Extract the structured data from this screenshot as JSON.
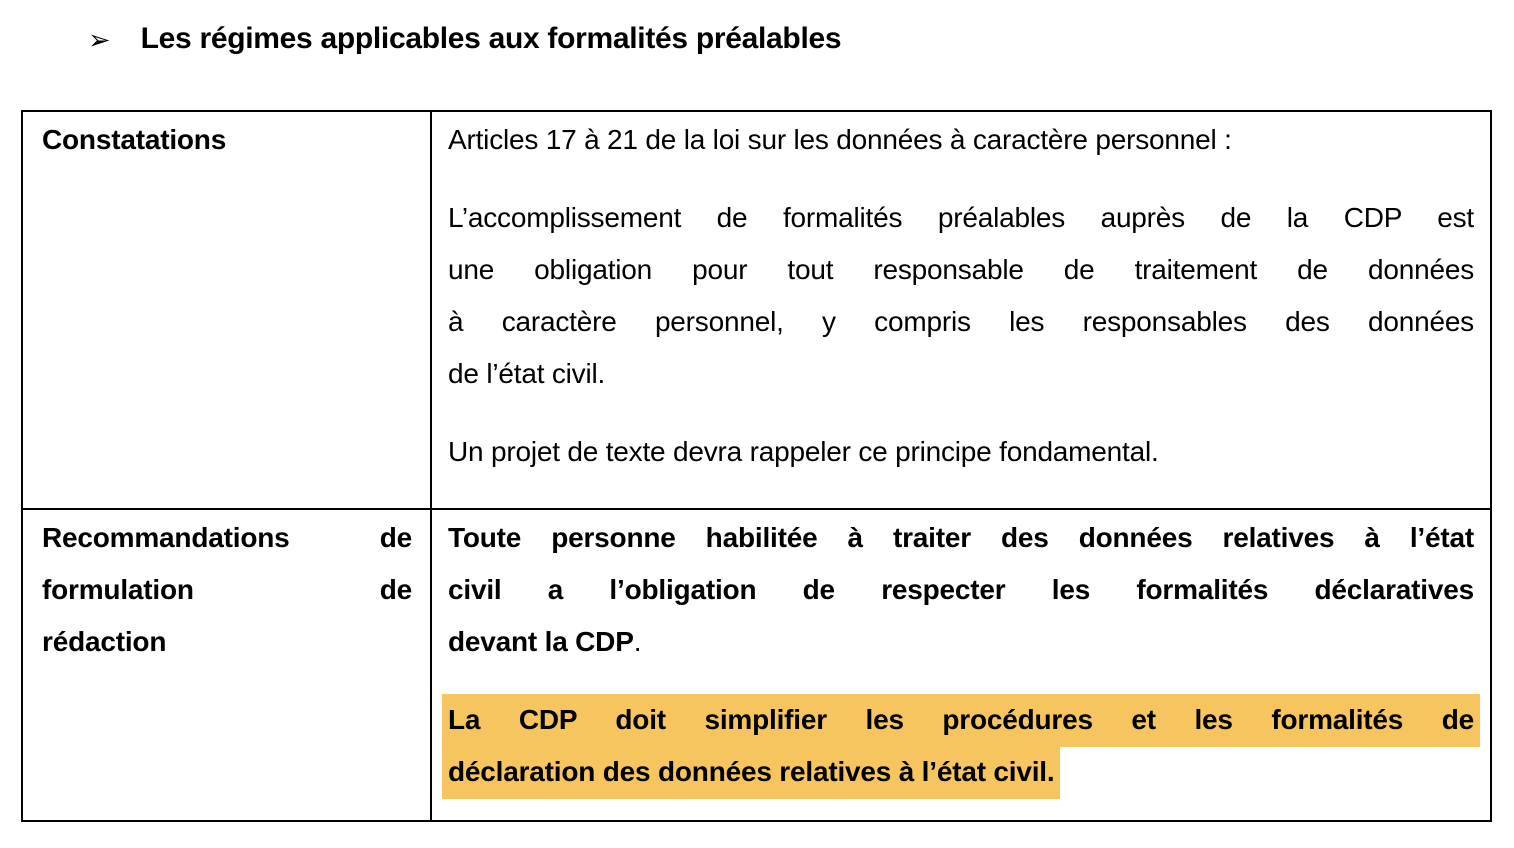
{
  "colors": {
    "highlight": "#F6C55F",
    "border": "#000000",
    "text": "#000000",
    "background": "#FFFFFF"
  },
  "heading": {
    "bullet": "➢",
    "title": "Les régimes applicables aux formalités préalables"
  },
  "table": {
    "rows": [
      {
        "header": {
          "lines": [
            "Constatations"
          ]
        },
        "paragraphs": [
          {
            "lines": [
              "Articles 17 à 21 de la loi sur les données à caractère personnel :"
            ]
          },
          {
            "lines": [
              "L’accomplissement de formalités préalables auprès de la CDP est",
              "une obligation pour tout responsable de traitement de données",
              "à caractère personnel, y compris les responsables des données",
              "de l’état civil."
            ]
          },
          {
            "lines": [
              "Un projet de texte devra rappeler ce principe fondamental."
            ]
          }
        ]
      },
      {
        "header": {
          "lines": [
            "Recommandations de",
            "formulation de",
            "rédaction"
          ]
        },
        "paragraphs": [
          {
            "lines": [
              "Toute personne habilitée à traiter des données relatives à l’état",
              "civil a l’obligation de respecter les formalités déclaratives"
            ],
            "line3_main": "devant la CDP",
            "line3_period": "."
          },
          {
            "highlighted": true,
            "lines": [
              "La CDP doit simplifier les procédures et les formalités de",
              "déclaration des données relatives à l’état civil."
            ]
          }
        ]
      }
    ]
  }
}
